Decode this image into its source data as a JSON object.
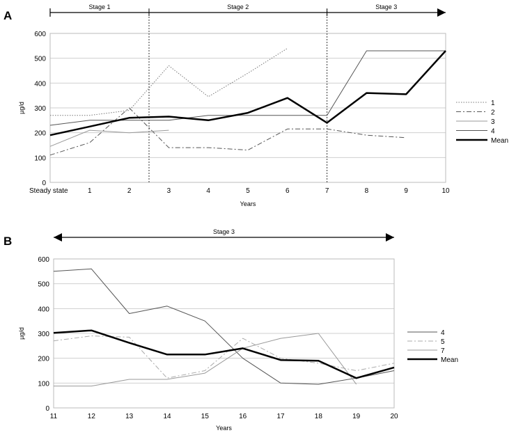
{
  "chart_data": [
    {
      "type": "line",
      "panel_label": "A",
      "xlabel": "Years",
      "ylabel": "µg/d",
      "ylim": [
        0,
        600
      ],
      "yticks": [
        0,
        100,
        200,
        300,
        400,
        500,
        600
      ],
      "categories": [
        "Steady state",
        "1",
        "2",
        "3",
        "4",
        "5",
        "6",
        "7",
        "8",
        "9",
        "10"
      ],
      "stages": [
        {
          "label": "Stage 1",
          "from": 0,
          "to": 2.5
        },
        {
          "label": "Stage 2",
          "from": 2.5,
          "to": 7
        },
        {
          "label": "Stage 3",
          "from": 7,
          "to": 10
        }
      ],
      "stage_dividers": [
        2.5,
        7
      ],
      "series": [
        {
          "name": "1",
          "style": "dotted",
          "color": "#777777",
          "width": 1,
          "x": [
            0,
            1,
            2,
            3,
            4,
            5,
            6
          ],
          "values": [
            270,
            270,
            290,
            470,
            345,
            440,
            540
          ]
        },
        {
          "name": "2",
          "style": "dashdot",
          "color": "#555555",
          "width": 1,
          "x": [
            0,
            1,
            2,
            3,
            4,
            5,
            6,
            7,
            8,
            9
          ],
          "values": [
            110,
            160,
            300,
            140,
            140,
            130,
            215,
            215,
            190,
            180
          ]
        },
        {
          "name": "3",
          "style": "solid",
          "color": "#999999",
          "width": 1,
          "x": [
            0,
            1,
            2,
            3
          ],
          "values": [
            145,
            210,
            200,
            210
          ]
        },
        {
          "name": "4",
          "style": "solid",
          "color": "#555555",
          "width": 1,
          "x": [
            0,
            1,
            2,
            3,
            4,
            5,
            6,
            7,
            8,
            9,
            10
          ],
          "values": [
            230,
            250,
            250,
            250,
            270,
            270,
            270,
            270,
            530,
            530,
            530
          ]
        },
        {
          "name": "Mean",
          "style": "solid",
          "color": "#000000",
          "width": 2.5,
          "x": [
            0,
            1,
            2,
            3,
            4,
            5,
            6,
            7,
            8,
            9,
            10
          ],
          "values": [
            190,
            225,
            260,
            265,
            250,
            280,
            340,
            240,
            360,
            355,
            530
          ]
        }
      ]
    },
    {
      "type": "line",
      "panel_label": "B",
      "xlabel": "Years",
      "ylabel": "µg/d",
      "ylim": [
        0,
        600
      ],
      "yticks": [
        0,
        100,
        200,
        300,
        400,
        500,
        600
      ],
      "categories": [
        "11",
        "12",
        "13",
        "14",
        "15",
        "16",
        "17",
        "18",
        "19",
        "20"
      ],
      "stages": [
        {
          "label": "Stage 3",
          "from": 11,
          "to": 20
        }
      ],
      "stage_dividers": [],
      "series": [
        {
          "name": "4",
          "style": "solid",
          "color": "#555555",
          "width": 1,
          "x": [
            11,
            12,
            13,
            14,
            15,
            16,
            17,
            18,
            19,
            20
          ],
          "values": [
            550,
            560,
            380,
            410,
            350,
            200,
            100,
            95,
            120,
            150
          ]
        },
        {
          "name": "5",
          "style": "dashdot",
          "color": "#aaaaaa",
          "width": 1,
          "x": [
            11,
            12,
            13,
            14,
            15,
            16,
            17,
            18,
            19,
            20
          ],
          "values": [
            270,
            290,
            285,
            120,
            150,
            280,
            200,
            180,
            150,
            180
          ]
        },
        {
          "name": "7",
          "style": "solid",
          "color": "#999999",
          "width": 1,
          "x": [
            11,
            12,
            13,
            14,
            15,
            16,
            17,
            18,
            19
          ],
          "values": [
            88,
            88,
            115,
            115,
            140,
            240,
            280,
            300,
            95
          ]
        },
        {
          "name": "Mean",
          "style": "solid",
          "color": "#000000",
          "width": 2.5,
          "x": [
            11,
            12,
            13,
            14,
            15,
            16,
            17,
            18,
            19,
            20
          ],
          "values": [
            302,
            312,
            262,
            215,
            215,
            240,
            193,
            190,
            120,
            163
          ]
        }
      ]
    }
  ]
}
